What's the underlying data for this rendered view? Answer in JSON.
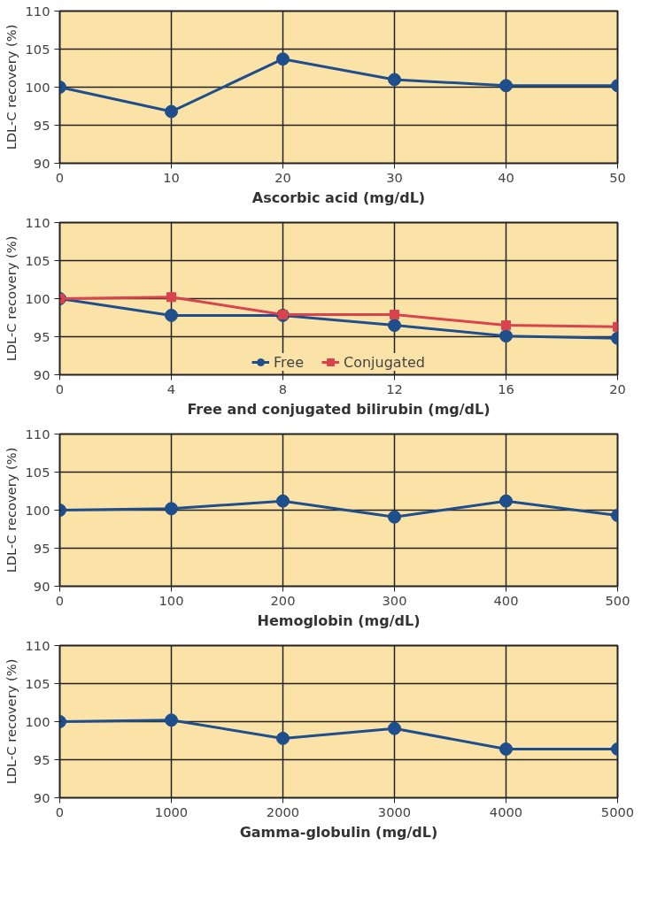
{
  "chart_data": [
    {
      "type": "line",
      "xlabel": "Ascorbic acid (mg/dL)",
      "ylabel": "LDL-C recovery (%)",
      "x": [
        0,
        10,
        20,
        30,
        40,
        50
      ],
      "xlim": [
        0,
        50
      ],
      "xticks": [
        0,
        10,
        20,
        30,
        40,
        50
      ],
      "ylim": [
        90,
        110
      ],
      "yticks": [
        90,
        95,
        100,
        105,
        110
      ],
      "grid": true,
      "marker": "circle",
      "line_style": "solid",
      "legend": false,
      "series": [
        {
          "color": "#1f4e8c",
          "values": [
            100,
            96.8,
            103.7,
            101,
            100.2,
            100.2
          ]
        }
      ]
    },
    {
      "type": "line",
      "xlabel": "Free and conjugated bilirubin (mg/dL)",
      "ylabel": "LDL-C recovery (%)",
      "x": [
        0,
        4,
        8,
        12,
        16,
        20
      ],
      "xlim": [
        0,
        20
      ],
      "xticks": [
        0,
        4,
        8,
        12,
        16,
        20
      ],
      "ylim": [
        90,
        110
      ],
      "yticks": [
        90,
        95,
        100,
        105,
        110
      ],
      "grid": true,
      "marker": "circle",
      "line_style": "solid",
      "legend": "bottom",
      "series": [
        {
          "name": "Free",
          "color": "#1f4e8c",
          "values": [
            100,
            97.8,
            97.8,
            96.5,
            95.1,
            94.8
          ]
        },
        {
          "name": "Conjugated",
          "color": "#d9434e",
          "marker": "square",
          "values": [
            100,
            100.2,
            97.9,
            97.9,
            96.5,
            96.3
          ]
        }
      ]
    },
    {
      "type": "line",
      "xlabel": "Hemoglobin (mg/dL)",
      "ylabel": "LDL-C recovery (%)",
      "x": [
        0,
        100,
        200,
        300,
        400,
        500
      ],
      "xlim": [
        0,
        500
      ],
      "xticks": [
        0,
        100,
        200,
        300,
        400,
        500
      ],
      "ylim": [
        90,
        110
      ],
      "yticks": [
        90,
        95,
        100,
        105,
        110
      ],
      "grid": true,
      "marker": "circle",
      "line_style": "solid",
      "legend": false,
      "series": [
        {
          "color": "#1f4e8c",
          "values": [
            100,
            100.2,
            101.2,
            99.1,
            101.2,
            99.3
          ]
        }
      ]
    },
    {
      "type": "line",
      "xlabel": "Gamma-globulin (mg/dL)",
      "ylabel": "LDL-C recovery (%)",
      "x": [
        0,
        1000,
        2000,
        3000,
        4000,
        5000
      ],
      "xlim": [
        0,
        5000
      ],
      "xticks": [
        0,
        1000,
        2000,
        3000,
        4000,
        5000
      ],
      "ylim": [
        90,
        110
      ],
      "yticks": [
        90,
        95,
        100,
        105,
        110
      ],
      "grid": true,
      "marker": "circle",
      "line_style": "solid",
      "legend": false,
      "series": [
        {
          "color": "#1f4e8c",
          "values": [
            100,
            100.2,
            97.8,
            99.1,
            96.4,
            96.4
          ]
        }
      ]
    }
  ]
}
